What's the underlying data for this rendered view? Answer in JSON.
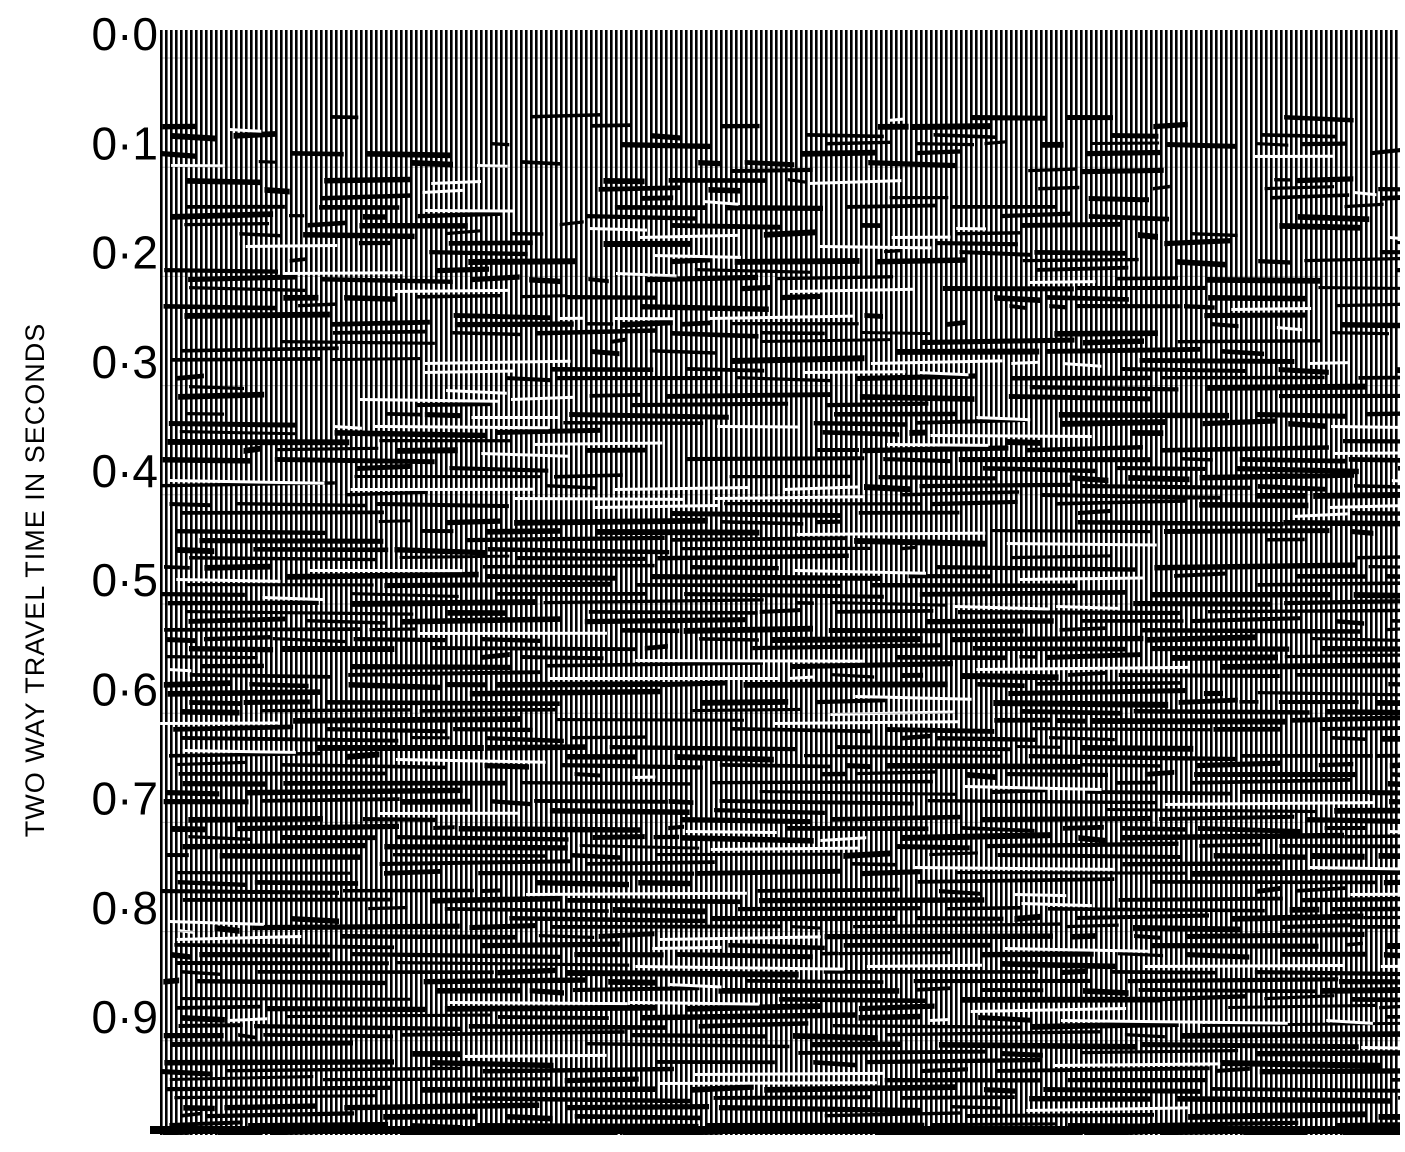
{
  "chart_data": {
    "type": "seismic",
    "y_label": "TWO WAY TRAVEL TIME IN SECONDS",
    "ylim": [
      0,
      1
    ],
    "yticks": [
      {
        "value": 0,
        "label": "0·0"
      },
      {
        "value": 0.1,
        "label": "0·1"
      },
      {
        "value": 0.2,
        "label": "0·2"
      },
      {
        "value": 0.3,
        "label": "0·3"
      },
      {
        "value": 0.4,
        "label": "0·4"
      },
      {
        "value": 0.5,
        "label": "0·5"
      },
      {
        "value": 0.6,
        "label": "0·6"
      },
      {
        "value": 0.7,
        "label": "0·7"
      },
      {
        "value": 0.8,
        "label": "0·8"
      },
      {
        "value": 0.9,
        "label": "0·9"
      }
    ]
  }
}
